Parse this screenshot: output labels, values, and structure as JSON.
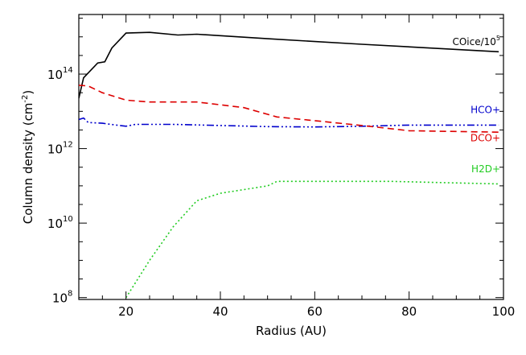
{
  "chart_data": {
    "type": "line",
    "xlabel": "Radius (AU)",
    "ylabel": "Column density (cm",
    "ylabel_sup": "-2",
    "ylabel_end": ")",
    "xlim": [
      10,
      100
    ],
    "ylim_log10": [
      7.95,
      15.6
    ],
    "y_scale": "log",
    "x_ticks": [
      20,
      40,
      60,
      80,
      100
    ],
    "x_tick_labels": [
      "20",
      "40",
      "60",
      "80",
      "100"
    ],
    "x_minor_step": 5,
    "y_ticks": [
      {
        "base": "10",
        "exp": "8",
        "log": 8
      },
      {
        "base": "10",
        "exp": "10",
        "log": 10
      },
      {
        "base": "10",
        "exp": "12",
        "log": 12
      },
      {
        "base": "10",
        "exp": "14",
        "log": 14
      }
    ],
    "y_minor_step_log": 0.5,
    "series": [
      {
        "label": "COice/10",
        "label_sup": "5",
        "color": "#000000",
        "dash": "",
        "x": [
          10,
          11,
          14,
          15.5,
          17,
          20,
          25,
          31,
          35,
          50,
          70,
          99
        ],
        "log_y": [
          13.35,
          13.9,
          14.3,
          14.33,
          14.7,
          15.1,
          15.12,
          15.05,
          15.07,
          14.95,
          14.8,
          14.6
        ]
      },
      {
        "label": "HCO+",
        "color": "#0000cc",
        "dash": "9 3 2 3 2 3 2 3",
        "x": [
          10,
          11,
          12,
          15,
          18,
          20,
          22,
          30,
          40,
          50,
          60,
          70,
          80,
          99
        ],
        "log_y": [
          12.78,
          12.82,
          12.7,
          12.68,
          12.63,
          12.6,
          12.65,
          12.65,
          12.62,
          12.59,
          12.58,
          12.6,
          12.63,
          12.63
        ]
      },
      {
        "label": "DCO+",
        "color": "#dd0000",
        "dash": "8 5",
        "x": [
          10,
          12,
          15,
          20,
          25,
          35,
          45,
          52,
          60,
          70,
          80,
          99
        ],
        "log_y": [
          13.7,
          13.68,
          13.5,
          13.3,
          13.25,
          13.25,
          13.1,
          12.85,
          12.75,
          12.62,
          12.48,
          12.44
        ]
      },
      {
        "label": "H2D+",
        "color": "#22cc22",
        "dash": "2 3",
        "x": [
          20,
          25,
          30,
          35,
          40,
          50,
          52,
          76,
          99
        ],
        "log_y": [
          8.0,
          9.0,
          9.9,
          10.6,
          10.8,
          11.0,
          11.12,
          11.12,
          11.05
        ]
      }
    ]
  }
}
